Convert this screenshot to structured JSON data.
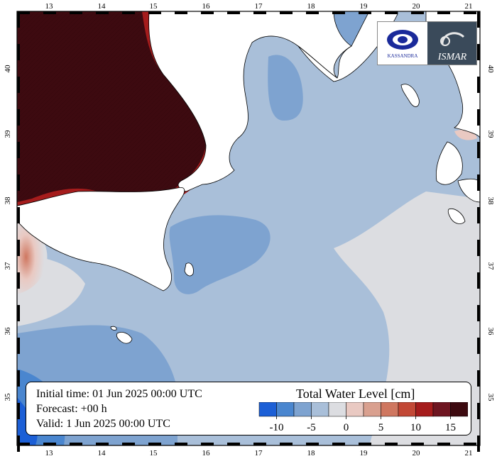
{
  "map": {
    "lon_ticks": [
      "13",
      "14",
      "15",
      "16",
      "17",
      "18",
      "19",
      "20",
      "21"
    ],
    "lat_ticks": [
      "40",
      "39",
      "38",
      "37",
      "36",
      "35"
    ],
    "frame_color": "#000000",
    "land_color": "#ffffff"
  },
  "info": {
    "initial_time": "Initial time: 01 Jun 2025 00:00 UTC",
    "forecast": "Forecast: +00 h",
    "valid": "Valid:  1 Jun 2025 00:00 UTC"
  },
  "legend": {
    "title": "Total Water Level [cm]",
    "labels": [
      "-10",
      "-5",
      "0",
      "5",
      "10",
      "15"
    ],
    "colors": [
      "#1c5fd6",
      "#4a86cf",
      "#7ea3d0",
      "#a9bfd9",
      "#dcdde1",
      "#e9c9c2",
      "#d9a08f",
      "#cf7760",
      "#c24836",
      "#a51c1c",
      "#6e1520",
      "#3d0a10"
    ]
  },
  "logos": {
    "left": "KASSANDRA",
    "right": "ISMAR",
    "left_icon": "kassandra-logo-icon",
    "right_icon": "ismar-logo-icon"
  }
}
